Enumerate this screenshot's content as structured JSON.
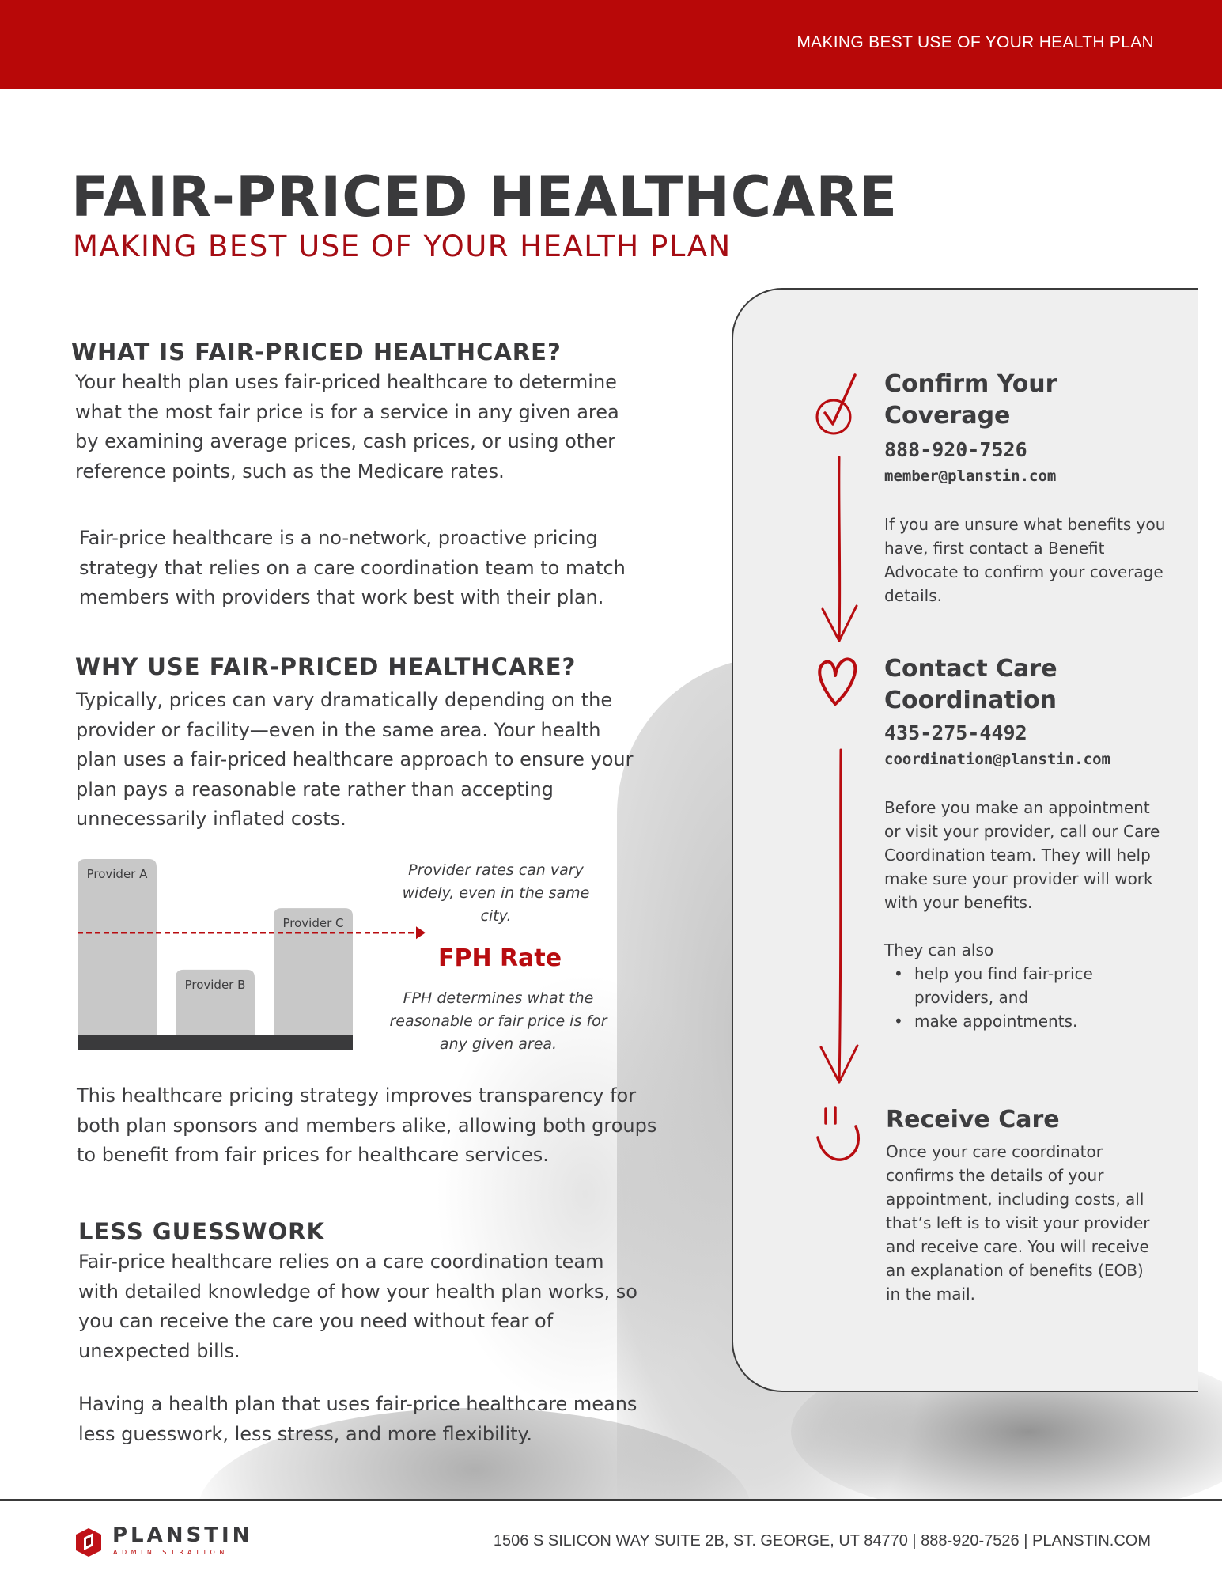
{
  "header": {
    "banner_text": "MAKING BEST USE OF YOUR HEALTH PLAN",
    "title": "FAIR-PRICED HEALTHCARE",
    "subtitle": "MAKING BEST USE OF YOUR HEALTH PLAN",
    "brand_red": "#b80808"
  },
  "sections": {
    "what": {
      "heading": "WHAT IS FAIR-PRICED HEALTHCARE?",
      "p1": "Your health plan uses fair-priced healthcare to determine what the most fair price is for a service in any given area by examining average prices, cash prices, or using other reference points, such as the Medicare rates.",
      "p2": "Fair-price healthcare is a no-network, proactive pricing strategy that relies on a care coordination team to match members with providers that work best with their plan."
    },
    "why": {
      "heading": "WHY USE FAIR-PRICED HEALTHCARE?",
      "p1": "Typically, prices can vary dramatically depending on the provider or facility—even in the same area. Your health plan uses a fair-priced healthcare approach to ensure your plan pays a reasonable rate rather than accepting unnecessarily inflated costs.",
      "p2": "This healthcare pricing strategy improves transparency for both plan sponsors and members alike, allowing both groups to benefit from fair prices for healthcare services."
    },
    "less": {
      "heading": "LESS GUESSWORK",
      "p1": "Fair-price healthcare relies on a care coordination team with detailed knowledge of how your health plan works, so you can receive the care you need without fear of unexpected bills.",
      "p2": "Having a health plan that uses fair-price healthcare means less guesswork, less stress, and more flexibility."
    }
  },
  "chart_data": {
    "type": "bar",
    "categories": [
      "Provider A",
      "Provider B",
      "Provider C"
    ],
    "values": [
      100,
      37,
      72
    ],
    "reference_line": {
      "label": "FPH Rate",
      "value": 58
    },
    "ylim": [
      0,
      100
    ],
    "grid": false,
    "note_top": "Provider rates can vary widely, even in the same city.",
    "note_bottom": "FPH determines what the reasonable or fair price is for any given area.",
    "bar_color": "#c8c8c8",
    "line_color": "#b80c10"
  },
  "steps": [
    {
      "title": "Confirm Your Coverage",
      "phone": "888-920-7526",
      "email": "member@planstin.com",
      "text": "If you are unsure what benefits you have, first contact a Benefit Advocate to confirm your coverage details.",
      "icon": "check-circle-icon"
    },
    {
      "title": "Contact Care Coordination",
      "phone": "435-275-4492",
      "email": "coordination@planstin.com",
      "text": "Before you make an appointment or visit your provider, call our Care Coordination team. They will help make sure your provider will work with your benefits.",
      "also": "They can also",
      "bullets": [
        "help you find fair-price providers, and",
        "make appointments."
      ],
      "icon": "heart-icon"
    },
    {
      "title": "Receive Care",
      "text": "Once your care coordinator confirms the details of your appointment, including costs, all that’s left is to visit your provider and receive care. You will receive an explanation of benefits (EOB) in the mail.",
      "icon": "smile-icon"
    }
  ],
  "footer": {
    "brand": "PLANSTIN",
    "brand_sub": "ADMINISTRATION",
    "contact": "1506 S SILICON WAY SUITE 2B, ST. GEORGE, UT 84770  |  888-920-7526  |  PLANSTIN.COM"
  }
}
